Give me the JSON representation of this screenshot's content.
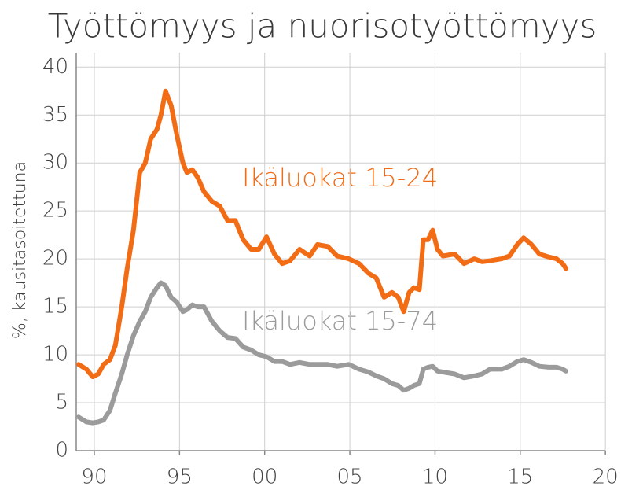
{
  "chart_data": {
    "type": "line",
    "title": "Työttömyys ja nuorisotyöttömyys",
    "y_label": "%, kausitasoitettuna",
    "x": [
      1989.08,
      1989.54,
      1989.91,
      1990.23,
      1990.55,
      1990.92,
      1991.24,
      1991.61,
      1991.93,
      1992.3,
      1992.67,
      1992.99,
      1993.31,
      1993.68,
      1993.91,
      1994.18,
      1994.51,
      1994.83,
      1995.2,
      1995.43,
      1995.75,
      1996.07,
      1996.44,
      1996.9,
      1997.36,
      1997.82,
      1998.28,
      1998.74,
      1999.2,
      1999.66,
      2000.11,
      2000.57,
      2001.03,
      2001.49,
      2002.05,
      2002.64,
      2003.1,
      2003.7,
      2004.25,
      2004.94,
      2005.54,
      2006.09,
      2006.55,
      2007.01,
      2007.47,
      2007.84,
      2008.16,
      2008.48,
      2008.76,
      2009.08,
      2009.31,
      2009.59,
      2009.86,
      2010.14,
      2010.46,
      2011.15,
      2011.7,
      2012.3,
      2012.76,
      2013.22,
      2013.91,
      2014.37,
      2014.83,
      2015.2,
      2015.66,
      2016.12,
      2016.67,
      2017.13,
      2017.49,
      2017.68
    ],
    "series": [
      {
        "name": "Ikäluokat 15-24",
        "color": "#f26c16",
        "values": [
          9,
          8.5,
          7.7,
          8,
          9,
          9.5,
          11,
          15,
          19,
          23,
          29,
          30,
          32.5,
          33.5,
          35,
          37.5,
          36,
          33,
          30,
          29,
          29.3,
          28.5,
          27,
          26,
          25.5,
          24,
          24,
          22,
          21,
          21,
          22.3,
          20.5,
          19.5,
          19.8,
          21,
          20.3,
          21.5,
          21.3,
          20.3,
          20,
          19.5,
          18.5,
          18,
          16,
          16.5,
          16,
          14.5,
          16.5,
          17,
          16.8,
          22,
          22,
          23,
          21,
          20.3,
          20.5,
          19.5,
          20,
          19.7,
          19.8,
          20,
          20.3,
          21.5,
          22.2,
          21.5,
          20.5,
          20.2,
          20,
          19.5,
          19
        ]
      },
      {
        "name": "Ikäluokat 15-74",
        "color": "#9b9b9b",
        "values": [
          3.5,
          3,
          2.9,
          3,
          3.2,
          4.2,
          6,
          8,
          10,
          12,
          13.5,
          14.5,
          16,
          17,
          17.5,
          17.2,
          16,
          15.5,
          14.5,
          14.7,
          15.2,
          15,
          15,
          13.5,
          12.5,
          11.8,
          11.7,
          10.8,
          10.5,
          10,
          9.8,
          9.3,
          9.3,
          9,
          9.2,
          9,
          9,
          9,
          8.8,
          9,
          8.5,
          8.2,
          7.8,
          7.5,
          7,
          6.8,
          6.3,
          6.5,
          6.8,
          7,
          8.5,
          8.7,
          8.8,
          8.3,
          8.2,
          8,
          7.6,
          7.8,
          8,
          8.5,
          8.5,
          8.8,
          9.3,
          9.5,
          9.2,
          8.8,
          8.7,
          8.7,
          8.5,
          8.3
        ]
      }
    ],
    "xlim": [
      1988.94,
      2020.5
    ],
    "xticks": [
      {
        "value": 1990,
        "label": "90"
      },
      {
        "value": 1995,
        "label": "95"
      },
      {
        "value": 2000,
        "label": "00"
      },
      {
        "value": 2005,
        "label": "05"
      },
      {
        "value": 2010,
        "label": "10"
      },
      {
        "value": 2015,
        "label": "15"
      },
      {
        "value": 2020,
        "label": "20"
      }
    ],
    "ylim": [
      0,
      41.5
    ],
    "yticks": [
      0,
      5,
      10,
      15,
      20,
      25,
      30,
      35,
      40
    ],
    "grid": true
  }
}
